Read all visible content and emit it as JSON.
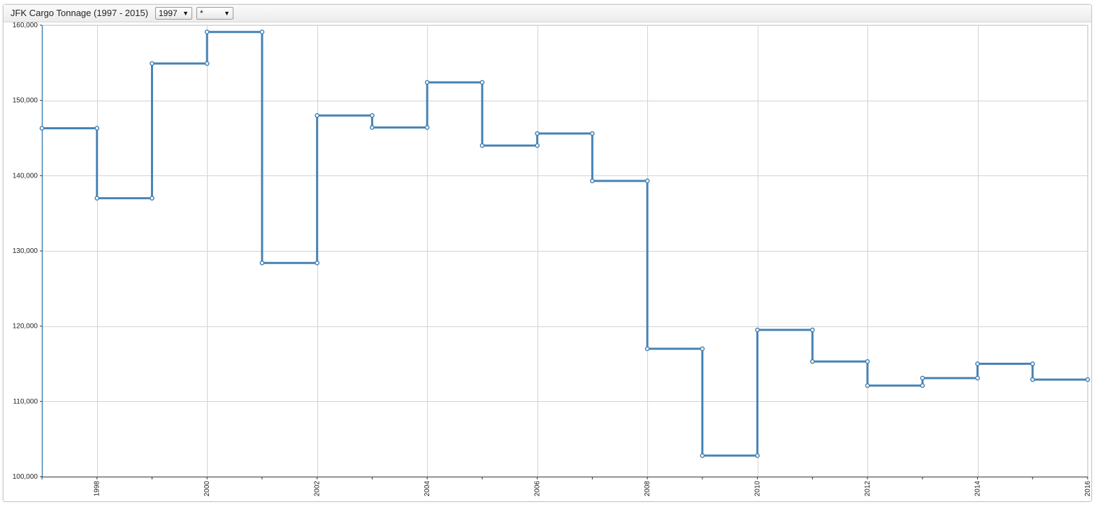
{
  "header": {
    "title": "JFK Cargo Tonnage (1997 - 2015)",
    "year_select": "1997",
    "filter_select": "*"
  },
  "chart_data": {
    "type": "line",
    "step": true,
    "title": "JFK Cargo Tonnage (1997 - 2015)",
    "xlabel": "",
    "ylabel": "",
    "xlim": [
      1997,
      2016
    ],
    "ylim": [
      100000,
      160000
    ],
    "grid": true,
    "x_ticks": [
      1998,
      2000,
      2002,
      2004,
      2006,
      2008,
      2010,
      2012,
      2014,
      2016
    ],
    "y_ticks": [
      100000,
      110000,
      120000,
      130000,
      140000,
      150000,
      160000
    ],
    "x_tick_labels": [
      "1998",
      "2000",
      "2002",
      "2004",
      "2006",
      "2008",
      "2010",
      "2012",
      "2014",
      "2016"
    ],
    "y_tick_labels": [
      "100,000",
      "110,000",
      "120,000",
      "130,000",
      "140,000",
      "150,000",
      "160,000"
    ],
    "series": [
      {
        "color": "#4682b4",
        "x": [
          1997,
          1998,
          1999,
          2000,
          2001,
          2002,
          2003,
          2004,
          2005,
          2006,
          2007,
          2008,
          2009,
          2010,
          2011,
          2012,
          2013,
          2014,
          2015
        ],
        "values": [
          146300,
          137000,
          154900,
          159100,
          128400,
          148000,
          146400,
          152400,
          144000,
          145600,
          139300,
          117000,
          102800,
          119500,
          115300,
          112100,
          113100,
          115000,
          112900
        ]
      }
    ]
  }
}
